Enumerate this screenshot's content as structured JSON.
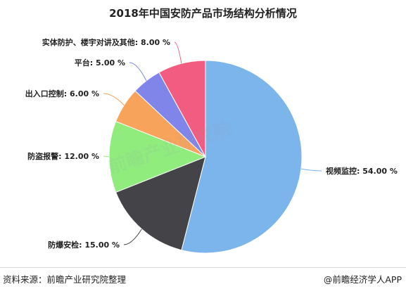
{
  "chart_data": {
    "type": "pie",
    "title": "2018年中国安防产品市场结构分析情况",
    "slices": [
      {
        "label": "视频监控",
        "value": 54.0,
        "display": "视频监控: 54.00 %",
        "color": "#7cb4ec"
      },
      {
        "label": "防爆安检",
        "value": 15.0,
        "display": "防爆安检: 15.00 %",
        "color": "#434348"
      },
      {
        "label": "防盗报警",
        "value": 12.0,
        "display": "防盗报警: 12.00 %",
        "color": "#90ed7d"
      },
      {
        "label": "出入口控制",
        "value": 6.0,
        "display": "出入口控制: 6.00 %",
        "color": "#f7a35c"
      },
      {
        "label": "平台",
        "value": 5.0,
        "display": "平台: 5.00 %",
        "color": "#8085e9"
      },
      {
        "label": "实体防护、楼宇对讲及其他",
        "value": 8.0,
        "display": "实体防护、楼宇对讲及其他: 8.00 %",
        "color": "#f15c80"
      }
    ]
  },
  "footer": {
    "source": "资料来源：前瞻产业研究院整理",
    "credit": "@前瞻经济学人APP"
  },
  "watermark": {
    "text": "前瞻产业研究院"
  }
}
